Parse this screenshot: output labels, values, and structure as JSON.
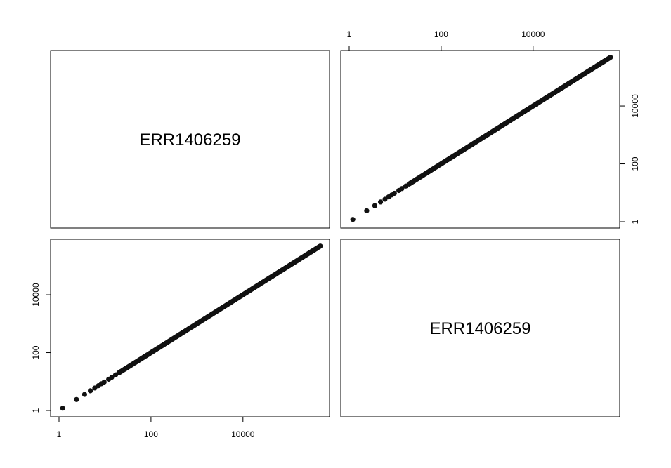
{
  "chart_data": {
    "type": "scatter",
    "layout": "pairs-matrix",
    "variables": [
      "ERR1406259",
      "ERR1406259"
    ],
    "scale": "log",
    "axis_range": [
      1,
      500000
    ],
    "ticks": [
      {
        "value": 1,
        "label": "1"
      },
      {
        "value": 100,
        "label": "100"
      },
      {
        "value": 10000,
        "label": "10000"
      }
    ],
    "panels": [
      {
        "name": "diagonal-1",
        "type": "label",
        "label": "ERR1406259"
      },
      {
        "name": "upper-right",
        "type": "scatter",
        "top_axis": true,
        "right_axis": true
      },
      {
        "name": "lower-left",
        "type": "scatter",
        "left_axis": true,
        "bottom_axis": true
      },
      {
        "name": "diagonal-2",
        "type": "label",
        "label": "ERR1406259"
      }
    ],
    "points": [
      [
        1.2,
        1.2
      ],
      [
        2.4,
        2.4
      ],
      [
        3.6,
        3.6
      ],
      [
        4.8,
        4.8
      ],
      [
        6,
        6
      ],
      [
        7.2,
        7.2
      ],
      [
        8.4,
        8.4
      ],
      [
        9.6,
        9.6
      ],
      [
        12,
        12
      ],
      [
        14,
        14
      ],
      [
        17,
        17
      ],
      [
        20,
        20
      ],
      [
        25,
        25
      ],
      [
        30,
        30
      ],
      [
        38,
        38
      ],
      [
        48,
        48
      ],
      [
        60,
        60
      ],
      [
        75,
        75
      ],
      [
        95,
        95
      ],
      [
        120,
        120
      ],
      [
        150,
        150
      ],
      [
        190,
        190
      ],
      [
        240,
        240
      ],
      [
        300,
        300
      ],
      [
        380,
        380
      ],
      [
        480,
        480
      ],
      [
        600,
        600
      ],
      [
        760,
        760
      ],
      [
        950,
        950
      ],
      [
        1200,
        1200
      ],
      [
        1500,
        1500
      ],
      [
        1900,
        1900
      ],
      [
        2400,
        2400
      ],
      [
        3000,
        3000
      ],
      [
        3800,
        3800
      ],
      [
        4800,
        4800
      ],
      [
        6000,
        6000
      ],
      [
        7600,
        7600
      ],
      [
        9500,
        9500
      ],
      [
        12000,
        12000
      ],
      [
        15000,
        15000
      ],
      [
        19000,
        19000
      ],
      [
        24000,
        24000
      ],
      [
        30000,
        30000
      ],
      [
        38000,
        38000
      ],
      [
        48000,
        48000
      ],
      [
        60000,
        60000
      ],
      [
        76000,
        76000
      ],
      [
        95000,
        95000
      ],
      [
        120000,
        120000
      ],
      [
        150000,
        150000
      ],
      [
        190000,
        190000
      ],
      [
        240000,
        240000
      ],
      [
        300000,
        300000
      ],
      [
        330000,
        330000
      ],
      [
        360000,
        360000
      ],
      [
        480000,
        480000
      ]
    ]
  }
}
